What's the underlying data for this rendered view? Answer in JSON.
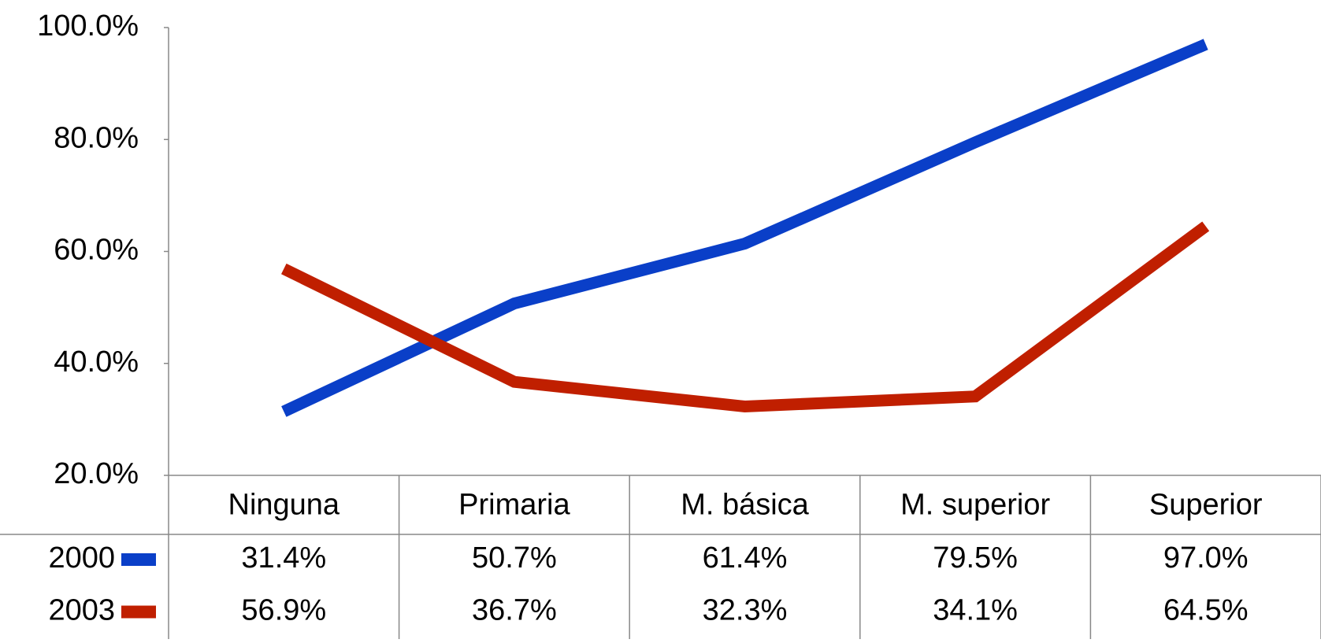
{
  "chart_data": {
    "type": "line",
    "categories": [
      "Ninguna",
      "Primaria",
      "M. básica",
      "M. superior",
      "Superior"
    ],
    "series": [
      {
        "name": "2000",
        "color": "#0a3fc8",
        "values": [
          31.4,
          50.7,
          61.4,
          79.5,
          97.0
        ],
        "value_labels": [
          "31.4%",
          "50.7%",
          "61.4%",
          "79.5%",
          "97.0%"
        ]
      },
      {
        "name": "2003",
        "color": "#c01f00",
        "values": [
          56.9,
          36.7,
          32.3,
          34.1,
          64.5
        ],
        "value_labels": [
          "56.9%",
          "36.7%",
          "32.3%",
          "34.1%",
          "64.5%"
        ]
      }
    ],
    "ylim": [
      20,
      100
    ],
    "yticks": [
      {
        "value": 20,
        "label": "20.0%"
      },
      {
        "value": 40,
        "label": "40.0%"
      },
      {
        "value": 60,
        "label": "60.0%"
      },
      {
        "value": 80,
        "label": "80.0%"
      },
      {
        "value": 100,
        "label": "100.0%"
      }
    ],
    "grid": false
  }
}
